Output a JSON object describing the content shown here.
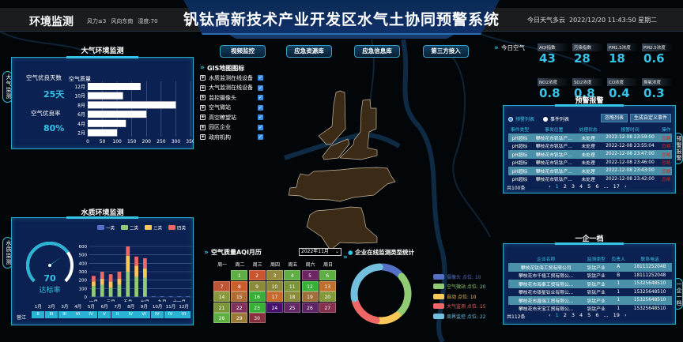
{
  "header": {
    "section": "环境监测",
    "title": "钒钛高新技术产业开发区水气土协同预警系统",
    "wind_force": "风力≤3",
    "wind_dir": "风向东南",
    "humidity": "湿度:70",
    "weather": "今日天气多云",
    "datetime": "2022/12/20 11:43:50 星期二"
  },
  "side_tabs": {
    "air": "大气监测",
    "water": "水质监测",
    "alarm": "预警报警",
    "enterprise": "一企一档"
  },
  "top_buttons": [
    "视频监控",
    "应急资源库",
    "应急信息库",
    "第三方接入"
  ],
  "gis": {
    "title": "GIS地图图标",
    "items": [
      {
        "label": "水质监测在线设备",
        "checked": true
      },
      {
        "label": "大气监测在线设备",
        "checked": true
      },
      {
        "label": "监控摄像头",
        "checked": true
      },
      {
        "label": "空气微站",
        "checked": true
      },
      {
        "label": "高空瞭望站",
        "checked": true
      },
      {
        "label": "园区企业",
        "checked": true
      },
      {
        "label": "政府机构",
        "checked": true
      }
    ]
  },
  "air_panel": {
    "title": "大气环境监测",
    "good_days_label": "空气优良天数",
    "good_days": "25天",
    "good_rate_label": "空气优良率",
    "good_rate": "80%"
  },
  "air_chart": {
    "type": "bar",
    "orientation": "horizontal",
    "title": "空气质量",
    "categories": [
      "12月",
      "10月",
      "8月",
      "6月",
      "4月",
      "2月"
    ],
    "values": [
      180,
      120,
      300,
      200,
      130,
      100
    ],
    "xlim": [
      0,
      350
    ],
    "xticks": [
      "0",
      "50",
      "100",
      "150",
      "200",
      "250",
      "300",
      "350"
    ],
    "grid": true,
    "bar_color": "#ffffff"
  },
  "water_panel": {
    "title": "水质环境监测",
    "gauge_value": "70",
    "gauge_fraction": 0.7,
    "gauge_label": "达标率",
    "river": "营江",
    "months": [
      "1月",
      "2月",
      "3月",
      "4月",
      "5月",
      "6月",
      "7月",
      "8月",
      "9月",
      "10月",
      "11月",
      "12月"
    ],
    "grades": [
      "II",
      "III",
      "III",
      "VI",
      "IV",
      "V",
      "II",
      "IV",
      "VI",
      "IV",
      "IV",
      "VI"
    ]
  },
  "chart_data": {
    "type": "bar",
    "stacked": true,
    "categories": [
      "一月",
      "二月",
      "三月",
      "四月",
      "五月",
      "六月",
      "七月",
      "八月",
      "九月",
      "十月",
      "十一月",
      "十二月"
    ],
    "xtick_labels": [
      "一月",
      "三月",
      "五月",
      "七月",
      "九月",
      "十一月"
    ],
    "ylim": [
      0,
      600
    ],
    "yticks": [
      "0",
      "100",
      "200",
      "300",
      "400",
      "500",
      "600"
    ],
    "grid": true,
    "legend": "top",
    "series": [
      {
        "name": "一类",
        "color": "#5470c6",
        "values": [
          5,
          5,
          5,
          5,
          5,
          5,
          5,
          8,
          8,
          8,
          8,
          8
        ]
      },
      {
        "name": "二类",
        "color": "#91cc75",
        "values": [
          125,
          140,
          105,
          140,
          295,
          235,
          225,
          0,
          0,
          0,
          0,
          0
        ]
      },
      {
        "name": "三类",
        "color": "#fac858",
        "values": [
          55,
          70,
          75,
          70,
          190,
          130,
          110,
          0,
          0,
          0,
          0,
          0
        ]
      },
      {
        "name": "四类",
        "color": "#ee6666",
        "values": [
          65,
          85,
          85,
          85,
          110,
          110,
          120,
          0,
          0,
          0,
          0,
          0
        ]
      }
    ]
  },
  "today_air": {
    "title": "今日空气",
    "items": [
      {
        "label": "AQI指数",
        "value": "43"
      },
      {
        "label": "污染指数",
        "value": "28"
      },
      {
        "label": "PM1.5浓度",
        "value": "18"
      },
      {
        "label": "PM2.5浓度",
        "value": "0.6"
      },
      {
        "label": "NO2浓度",
        "value": "0.8"
      },
      {
        "label": "SO2浓度",
        "value": "0.8"
      },
      {
        "label": "CO浓度",
        "value": "0.4"
      },
      {
        "label": "臭氧浓度",
        "value": "0.3"
      }
    ]
  },
  "alarm": {
    "title": "预警报警",
    "radio_alarm": "预警列表",
    "radio_event": "事件列表",
    "ignore_btn": "忽略列表",
    "custom_btn": "生成自定义事件",
    "headers": [
      "事件类型",
      "事发位置",
      "处理状态",
      "报警时间",
      "操作"
    ],
    "rows": [
      [
        "pH超标",
        "攀枝花市钒钛产...",
        "未处理",
        "2022-12-08 23:59:00",
        "忽略"
      ],
      [
        "pH超标",
        "攀枝花市钒钛产...",
        "未处理",
        "2022-12-08 23:55:04",
        "忽略"
      ],
      [
        "pH超标",
        "攀枝花市钒钛产...",
        "未处理",
        "2022-12-08 23:47:00",
        "忽略"
      ],
      [
        "pH超标",
        "攀枝花市钒钛产...",
        "未处理",
        "2022-12-08 23:46:00",
        "忽略"
      ],
      [
        "pH超标",
        "攀枝花市钒钛产...",
        "未处理",
        "2022-12-08 23:43:00",
        "忽略"
      ],
      [
        "pH超标",
        "攀枝花市钒钛产...",
        "未处理",
        "2022-12-08 23:42:00",
        "忽略"
      ]
    ],
    "total": "共100条",
    "pages": [
      "‹",
      "1",
      "2",
      "3",
      "4",
      "5",
      "6",
      "...",
      "17",
      "›"
    ],
    "current_page": "1"
  },
  "enterprise": {
    "title": "一企一档",
    "headers": [
      "企业名称",
      "监测类型",
      "负责人",
      "联系电话"
    ],
    "rows": [
      [
        "攀枝花钛海工贸有限公司",
        "钒钛产业",
        "A",
        "18111252048"
      ],
      [
        "攀枝花市千禧工贸有限公...",
        "钒钛产业",
        "B",
        "18111252048"
      ],
      [
        "攀枝花市海事工贸有限公...",
        "钒钛产业",
        "1",
        "15325648510"
      ],
      [
        "攀枝花市银星钛业有限公...",
        "钒钛产业",
        "1",
        "15325648510"
      ],
      [
        "攀枝花市鑫瑞工贸有限公...",
        "钒钛产业",
        "1",
        "15325648510"
      ],
      [
        "攀枝花市天宝工贸有限公...",
        "钒钛产业",
        "1",
        "15325648510"
      ]
    ],
    "total": "共112条",
    "pages": [
      "‹",
      "1",
      "2",
      "3",
      "4",
      "5",
      "6",
      "...",
      "19",
      "›"
    ],
    "current_page": "1"
  },
  "calendar": {
    "title": "空气质量AQI月历",
    "month_select": "2022年11月",
    "weekdays": [
      "周一",
      "周二",
      "周三",
      "周四",
      "周五",
      "周六",
      "周日"
    ],
    "first_col": 1,
    "days": [
      {
        "d": "1",
        "c": "#5fae44"
      },
      {
        "d": "2",
        "c": "#c9542e"
      },
      {
        "d": "3",
        "c": "#948a3a"
      },
      {
        "d": "4",
        "c": "#5fae44"
      },
      {
        "d": "5",
        "c": "#6e2460"
      },
      {
        "d": "6",
        "c": "#5fae44"
      },
      {
        "d": "7",
        "c": "#c05536"
      },
      {
        "d": "8",
        "c": "#cc5e2c"
      },
      {
        "d": "9",
        "c": "#8a8a38"
      },
      {
        "d": "10",
        "c": "#8a8a38"
      },
      {
        "d": "11",
        "c": "#7a9438"
      },
      {
        "d": "12",
        "c": "#36b036"
      },
      {
        "d": "13",
        "c": "#c06e2c"
      },
      {
        "d": "14",
        "c": "#88983a"
      },
      {
        "d": "15",
        "c": "#b06c34"
      },
      {
        "d": "16",
        "c": "#36b036"
      },
      {
        "d": "17",
        "c": "#c86a2c"
      },
      {
        "d": "18",
        "c": "#8a8a38"
      },
      {
        "d": "19",
        "c": "#a06e38"
      },
      {
        "d": "20",
        "c": "#849a3a"
      },
      {
        "d": "21",
        "c": "#7a9438"
      },
      {
        "d": "22",
        "c": "#82305c"
      },
      {
        "d": "23",
        "c": "#36b036"
      },
      {
        "d": "24",
        "c": "#46106c"
      },
      {
        "d": "25",
        "c": "#642866"
      },
      {
        "d": "26",
        "c": "#5e2466"
      },
      {
        "d": "27",
        "c": "#86304e"
      },
      {
        "d": "28",
        "c": "#5fae44"
      },
      {
        "d": "29",
        "c": "#9a7a38"
      },
      {
        "d": "30",
        "c": "#86303e"
      }
    ]
  },
  "donut": {
    "title": "企业在线监测类型统计",
    "items": [
      {
        "label": "摄像头 点位: 10",
        "value": 10,
        "color": "#5470c6"
      },
      {
        "label": "空气微站 点位: 20",
        "value": 20,
        "color": "#91cc75"
      },
      {
        "label": "自动 点位: 10",
        "value": 10,
        "color": "#fac858"
      },
      {
        "label": "大气监测 点位: 15",
        "value": 15,
        "color": "#ee6666"
      },
      {
        "label": "周界监控 点位: 22",
        "value": 22,
        "color": "#73c0de"
      }
    ]
  }
}
